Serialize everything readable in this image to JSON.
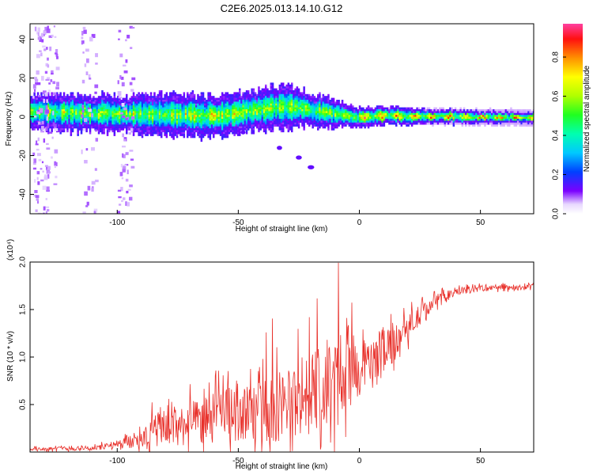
{
  "title": "C2E6.2025.013.14.10.G12",
  "chart_data": [
    {
      "type": "heatmap",
      "xlabel": "Height of straight line (km)",
      "ylabel": "Frequency (Hz)",
      "xlim": [
        -136,
        72
      ],
      "ylim": [
        -50,
        48
      ],
      "xticks": [
        -100,
        -50,
        0,
        50
      ],
      "yticks": [
        -40,
        -20,
        0,
        20,
        40
      ],
      "colorbar": {
        "label": "Normalized spectral amplitude",
        "range": [
          0.0,
          0.97
        ],
        "ticks": [
          0.0,
          0.2,
          0.4,
          0.6,
          0.8
        ]
      },
      "ridge": {
        "description": "dominant band near 0 Hz",
        "center_hz": [
          [
            -136,
            3
          ],
          [
            -100,
            2
          ],
          [
            -60,
            1
          ],
          [
            -30,
            6
          ],
          [
            -10,
            2
          ],
          [
            0,
            0
          ],
          [
            10,
            1
          ],
          [
            72,
            0
          ]
        ],
        "halfwidth_hz": [
          [
            -136,
            5
          ],
          [
            -60,
            6
          ],
          [
            -30,
            6
          ],
          [
            0,
            3
          ],
          [
            30,
            2
          ],
          [
            72,
            1.5
          ]
        ]
      },
      "descending_feature": [
        [
          -48,
          -8
        ],
        [
          -33,
          -16
        ],
        [
          -25,
          -21
        ],
        [
          -20,
          -26
        ]
      ]
    },
    {
      "type": "line",
      "xlabel": "Height of straight line (km)",
      "ylabel": "SNR (10 * v/v)",
      "yscale_label": "(x10⁴)",
      "xlim": [
        -136,
        72
      ],
      "ylim": [
        0,
        2.0
      ],
      "xticks": [
        -100,
        -50,
        0,
        50
      ],
      "yticks": [
        0.5,
        1.0,
        1.5,
        2.0
      ],
      "series": [
        {
          "color": "#e8302a",
          "envelope": {
            "x": [
              -136,
              -110,
              -100,
              -90,
              -80,
              -70,
              -60,
              -50,
              -40,
              -30,
              -20,
              -10,
              0,
              5,
              10,
              15,
              20,
              30,
              40,
              50,
              72
            ],
            "mean": [
              0.03,
              0.04,
              0.07,
              0.15,
              0.22,
              0.28,
              0.32,
              0.36,
              0.4,
              0.46,
              0.55,
              0.62,
              0.85,
              0.95,
              1.05,
              1.15,
              1.3,
              1.55,
              1.68,
              1.72,
              1.74
            ],
            "spread": [
              0.02,
              0.03,
              0.05,
              0.15,
              0.25,
              0.28,
              0.32,
              0.35,
              0.4,
              0.5,
              0.6,
              0.55,
              0.35,
              0.3,
              0.3,
              0.25,
              0.18,
              0.1,
              0.05,
              0.04,
              0.03
            ]
          }
        }
      ]
    }
  ]
}
